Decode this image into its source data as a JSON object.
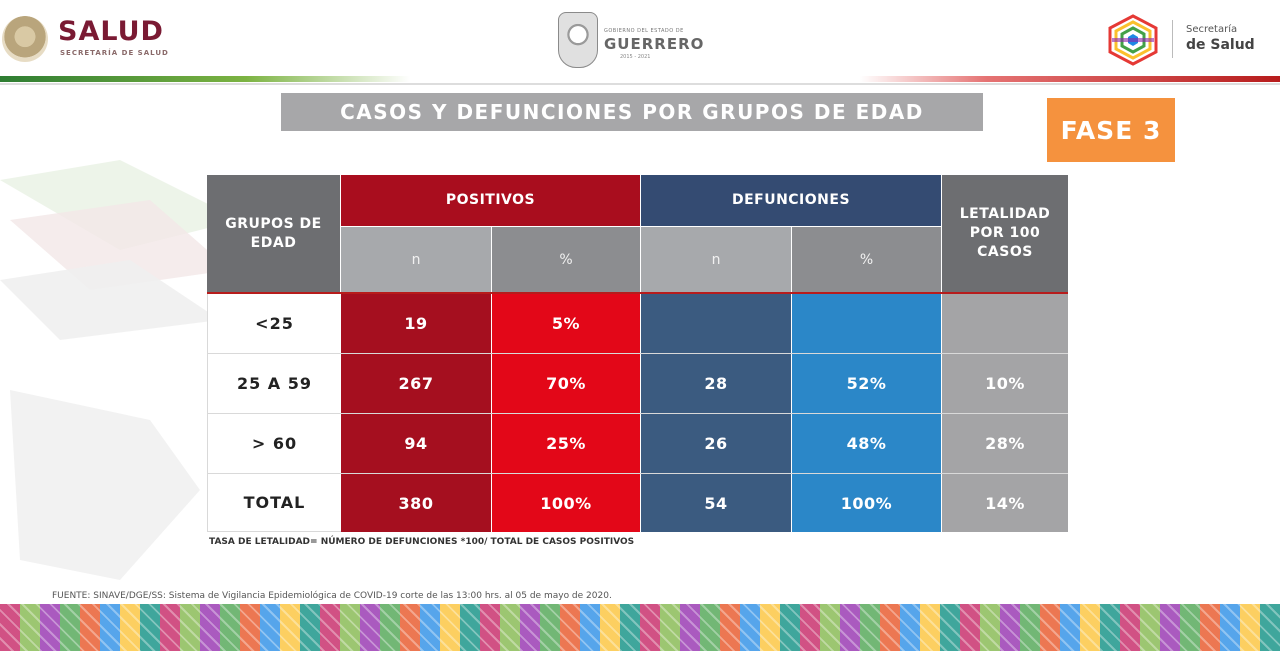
{
  "header": {
    "salud_title": "SALUD",
    "salud_subtitle": "SECRETARÍA DE SALUD",
    "guerrero_small": "GOBIERNO DEL ESTADO DE",
    "guerrero_name": "GUERRERO",
    "guerrero_years": "2015 - 2021",
    "secretaria_small": "Secretaría",
    "secretaria_big": "de Salud"
  },
  "title": "CASOS Y DEFUNCIONES POR GRUPOS DE EDAD",
  "badge": "FASE 3",
  "table": {
    "headers": {
      "grupos": "GRUPOS DE EDAD",
      "positivos": "POSITIVOS",
      "defunciones": "DEFUNCIONES",
      "letalidad": "LETALIDAD POR 100 CASOS",
      "n": "n",
      "pct": "%"
    },
    "rows": [
      {
        "grupo": "<25",
        "pos_n": "19",
        "pos_pct": "5%",
        "def_n": "",
        "def_pct": "",
        "letalidad": ""
      },
      {
        "grupo": "25 A 59",
        "pos_n": "267",
        "pos_pct": "70%",
        "def_n": "28",
        "def_pct": "52%",
        "letalidad": "10%"
      },
      {
        "grupo": "> 60",
        "pos_n": "94",
        "pos_pct": "25%",
        "def_n": "26",
        "def_pct": "48%",
        "letalidad": "28%"
      },
      {
        "grupo": "TOTAL",
        "pos_n": "380",
        "pos_pct": "100%",
        "def_n": "54",
        "def_pct": "100%",
        "letalidad": "14%"
      }
    ]
  },
  "note": "TASA DE LETALIDAD= NÚMERO DE DEFUNCIONES *100/ TOTAL DE CASOS POSITIVOS",
  "source": "FUENTE: SINAVE/DGE/SS: Sistema de Vigilancia Epidemiológica de COVID-19 corte de las 13:00 hrs. al 05 de mayo de 2020.",
  "colors": {
    "positivos": "#a90d1e",
    "positivos_pct": "#e30718",
    "defunciones": "#344b72",
    "defunciones_pct": "#2b87c8",
    "letalidad": "#a4a4a6",
    "badge": "#f5923e",
    "title_bar": "#a7a7a9"
  }
}
